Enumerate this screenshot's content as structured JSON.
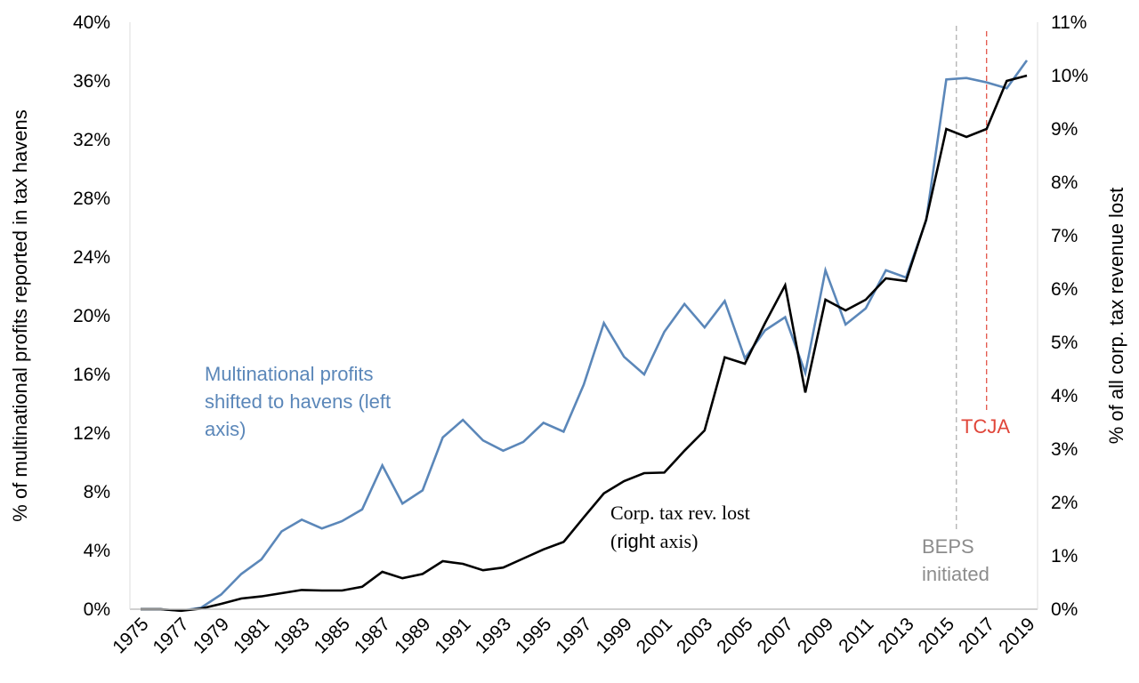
{
  "chart_data": {
    "type": "line",
    "title": "",
    "xlabel": "",
    "ylabel_left": "% of multinational profits reported in tax havens",
    "ylabel_right": "% of all corp. tax revenue lost",
    "x": [
      1975,
      1976,
      1977,
      1978,
      1979,
      1980,
      1981,
      1982,
      1983,
      1984,
      1985,
      1986,
      1987,
      1988,
      1989,
      1990,
      1991,
      1992,
      1993,
      1994,
      1995,
      1996,
      1997,
      1998,
      1999,
      2000,
      2001,
      2002,
      2003,
      2004,
      2005,
      2006,
      2007,
      2008,
      2009,
      2010,
      2011,
      2012,
      2013,
      2014,
      2015,
      2016,
      2017,
      2018,
      2019
    ],
    "x_tick_labels": [
      "1975",
      "1977",
      "1979",
      "1981",
      "1983",
      "1985",
      "1987",
      "1989",
      "1991",
      "1993",
      "1995",
      "1997",
      "1999",
      "2001",
      "2003",
      "2005",
      "2007",
      "2009",
      "2011",
      "2013",
      "2015",
      "2017",
      "2019"
    ],
    "left_axis": {
      "ylim": [
        0,
        40
      ],
      "ticks": [
        0,
        4,
        8,
        12,
        16,
        20,
        24,
        28,
        32,
        36,
        40
      ],
      "tick_labels": [
        "0%",
        "4%",
        "8%",
        "12%",
        "16%",
        "20%",
        "24%",
        "28%",
        "32%",
        "36%",
        "40%"
      ]
    },
    "right_axis": {
      "ylim": [
        0,
        11
      ],
      "ticks": [
        0,
        1,
        2,
        3,
        4,
        5,
        6,
        7,
        8,
        9,
        10,
        11
      ],
      "tick_labels": [
        "0%",
        "1%",
        "2%",
        "3%",
        "4%",
        "5%",
        "6%",
        "7%",
        "8%",
        "9%",
        "10%",
        "11%"
      ]
    },
    "series": [
      {
        "name": "Multinational profits shifted to havens (left axis)",
        "axis": "left",
        "color": "#5b87b9",
        "values": [
          0.0,
          0.0,
          -0.1,
          0.1,
          1.0,
          2.4,
          3.4,
          5.3,
          6.1,
          5.5,
          6.0,
          6.8,
          9.8,
          7.2,
          8.1,
          11.7,
          12.9,
          11.5,
          10.8,
          11.4,
          12.7,
          12.1,
          15.3,
          19.5,
          17.2,
          16.0,
          18.9,
          20.8,
          19.2,
          21.0,
          17.1,
          19.0,
          19.9,
          16.1,
          23.1,
          19.4,
          20.5,
          23.1,
          22.6,
          26.5,
          36.1,
          36.2,
          35.9,
          35.5,
          37.4
        ]
      },
      {
        "name": "Corp. tax rev. lost (right axis)",
        "axis": "right",
        "color": "#000000",
        "values": [
          0.0,
          0.0,
          -0.03,
          0.01,
          0.1,
          0.2,
          0.24,
          0.3,
          0.36,
          0.35,
          0.35,
          0.42,
          0.7,
          0.58,
          0.66,
          0.9,
          0.85,
          0.73,
          0.78,
          0.95,
          1.12,
          1.26,
          1.72,
          2.17,
          2.4,
          2.55,
          2.56,
          2.97,
          3.35,
          4.72,
          4.6,
          5.36,
          6.07,
          4.06,
          5.8,
          5.6,
          5.8,
          6.2,
          6.15,
          7.3,
          9.0,
          8.85,
          9.0,
          9.9,
          10.0
        ]
      }
    ],
    "annotations": {
      "blue_label_lines": [
        "Multinational profits",
        "shifted to havens (left",
        "axis)"
      ],
      "black_label_line1": "Corp. tax rev. lost",
      "black_label_line2_open": "(",
      "black_label_line2_bold": "right",
      "black_label_line2_rest": " axis)",
      "beps_lines": [
        "BEPS",
        "initiated"
      ],
      "beps_year": 2015.5,
      "beps_color": "#aaaaaa",
      "tcja_label": "TCJA",
      "tcja_year": 2017.0,
      "tcja_color": "#e0463a"
    }
  }
}
